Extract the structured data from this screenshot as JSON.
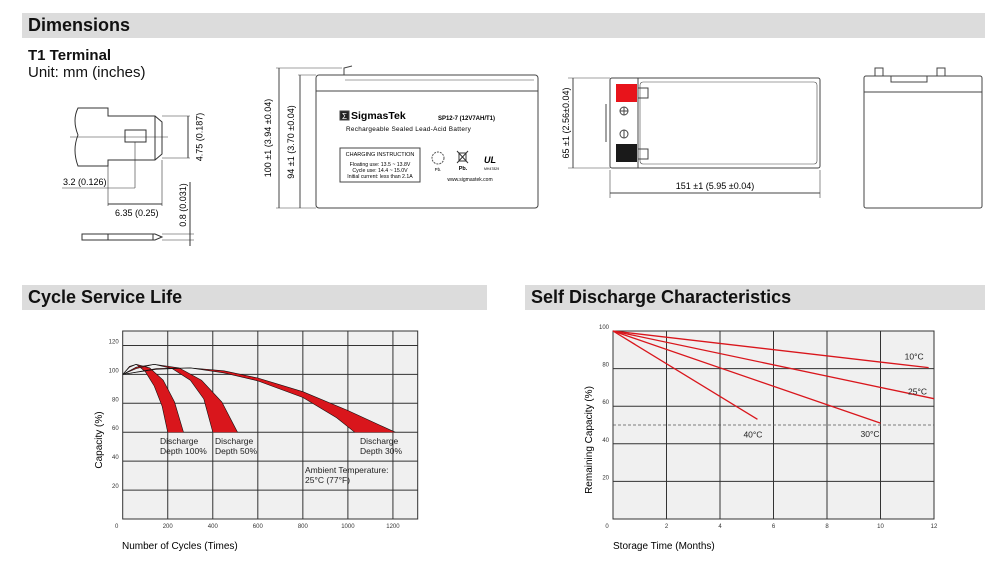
{
  "dimensions": {
    "title": "Dimensions",
    "terminal_title": "T1 Terminal",
    "unit": "Unit: mm (inches)",
    "terminal_labels": {
      "height": "4.75 (0.187)",
      "offset": "3.2 (0.126)",
      "width": "6.35 (0.25)",
      "thickness": "0.8 (0.031)"
    },
    "front_labels": {
      "total_height": "100 ±1 (3.94 ±0.04)",
      "case_height": "94 ±1 (3.70 ±0.04)"
    },
    "top_labels": {
      "width": "65 ±1 (2.56±0.04)",
      "length": "151 ±1 (5.95 ±0.04)"
    },
    "battery_label": {
      "brand": "SigmasTek",
      "brand_mark": "Σ",
      "model": "SP12-7 (12V7AH/T1)",
      "description": "Rechargeable Sealed Lead-Acid Battery",
      "charging_title": "CHARGING INSTRUCTION",
      "charging_lines": [
        "Floating use: 13.5 ~ 13.8V",
        "Cycle use: 14.4 ~ 15.0V",
        "Initial current: less than 2.1A"
      ],
      "recycle_text": "Pb.",
      "bin_text": "Pb.",
      "cert_text": "MH47829",
      "website": "www.sigmastek.com"
    },
    "terminal_colors": {
      "positive": "#e8141b",
      "negative": "#1a1a1a"
    }
  },
  "chart_data": [
    {
      "type": "area",
      "title": "Cycle Service Life",
      "xlabel": "Number of Cycles (Times)",
      "ylabel": "Capacity (%)",
      "xlim": [
        0,
        1310
      ],
      "ylim": [
        0,
        130
      ],
      "xticks": [
        0,
        200,
        400,
        600,
        800,
        1000,
        1200
      ],
      "yticks": [
        0,
        20,
        40,
        60,
        80,
        100,
        120
      ],
      "grid": true,
      "color": "#d9161c",
      "series": [
        {
          "name": "Discharge Depth 100%",
          "label": [
            "Discharge",
            "Depth 100%"
          ],
          "upper": [
            [
              0,
              100
            ],
            [
              30,
              105
            ],
            [
              60,
              107
            ],
            [
              120,
              104.5
            ],
            [
              180,
              96
            ],
            [
              230,
              81
            ],
            [
              270,
              60
            ]
          ],
          "lower": [
            [
              0,
              100
            ],
            [
              30,
              105.5
            ],
            [
              60,
              107
            ],
            [
              100,
              102
            ],
            [
              140,
              92
            ],
            [
              175,
              78
            ],
            [
              200,
              60
            ]
          ]
        },
        {
          "name": "Discharge Depth 50%",
          "label": [
            "Discharge",
            "Depth 50%"
          ],
          "upper": [
            [
              0,
              100
            ],
            [
              60,
              105
            ],
            [
              140,
              107
            ],
            [
              250,
              104.5
            ],
            [
              350,
              96
            ],
            [
              440,
              81
            ],
            [
              510,
              60
            ]
          ],
          "lower": [
            [
              0,
              100
            ],
            [
              60,
              104
            ],
            [
              140,
              107
            ],
            [
              220,
              104
            ],
            [
              300,
              96
            ],
            [
              360,
              83
            ],
            [
              400,
              60
            ]
          ]
        },
        {
          "name": "Discharge Depth 30%",
          "label": [
            "Discharge",
            "Depth 30%"
          ],
          "upper": [
            [
              0,
              100
            ],
            [
              150,
              104
            ],
            [
              300,
              104.5
            ],
            [
              450,
              102.5
            ],
            [
              600,
              97.5
            ],
            [
              800,
              88
            ],
            [
              1000,
              75
            ],
            [
              1210,
              60
            ]
          ],
          "lower": [
            [
              0,
              100
            ],
            [
              150,
              103.5
            ],
            [
              300,
              104.5
            ],
            [
              450,
              101
            ],
            [
              600,
              95.5
            ],
            [
              800,
              84
            ],
            [
              950,
              70
            ],
            [
              1030,
              60
            ]
          ]
        }
      ],
      "annotation": [
        "Ambient Temperature:",
        "25°C (77°F)"
      ]
    },
    {
      "type": "line",
      "title": "Self Discharge Characteristics",
      "xlabel": "Storage Time (Months)",
      "ylabel": "Remaining Capacity (%)",
      "xlim": [
        0,
        12
      ],
      "ylim": [
        0,
        100
      ],
      "xticks": [
        0,
        2,
        4,
        6,
        8,
        10,
        12
      ],
      "yticks": [
        0,
        20,
        40,
        60,
        80,
        100
      ],
      "grid": true,
      "color": "#d9161c",
      "reference_line": 50,
      "series": [
        {
          "name": "10°C",
          "points": [
            [
              0,
              100
            ],
            [
              11.8,
              80.5
            ]
          ]
        },
        {
          "name": "25°C",
          "points": [
            [
              0,
              100
            ],
            [
              12,
              64
            ]
          ]
        },
        {
          "name": "30°C",
          "points": [
            [
              0,
              100
            ],
            [
              10,
              51
            ]
          ]
        },
        {
          "name": "40°C",
          "points": [
            [
              0,
              100
            ],
            [
              5.4,
              53
            ]
          ]
        }
      ]
    }
  ]
}
